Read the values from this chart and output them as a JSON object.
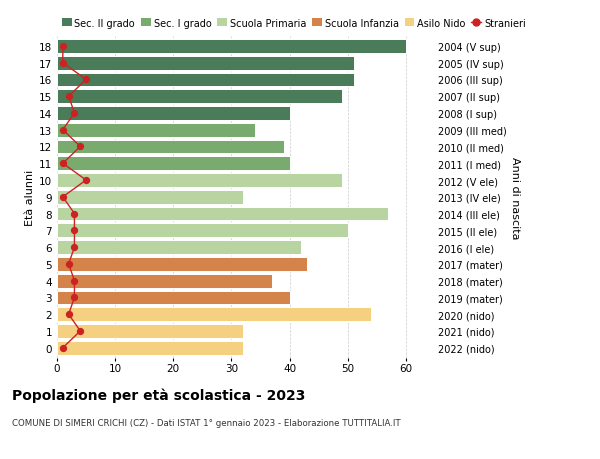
{
  "ages": [
    18,
    17,
    16,
    15,
    14,
    13,
    12,
    11,
    10,
    9,
    8,
    7,
    6,
    5,
    4,
    3,
    2,
    1,
    0
  ],
  "years": [
    "2004 (V sup)",
    "2005 (IV sup)",
    "2006 (III sup)",
    "2007 (II sup)",
    "2008 (I sup)",
    "2009 (III med)",
    "2010 (II med)",
    "2011 (I med)",
    "2012 (V ele)",
    "2013 (IV ele)",
    "2014 (III ele)",
    "2015 (II ele)",
    "2016 (I ele)",
    "2017 (mater)",
    "2018 (mater)",
    "2019 (mater)",
    "2020 (nido)",
    "2021 (nido)",
    "2022 (nido)"
  ],
  "bar_values": [
    60,
    51,
    51,
    49,
    40,
    34,
    39,
    40,
    49,
    32,
    57,
    50,
    42,
    43,
    37,
    40,
    54,
    32,
    32
  ],
  "stranieri": [
    1,
    1,
    5,
    2,
    3,
    1,
    4,
    1,
    5,
    1,
    3,
    3,
    3,
    2,
    3,
    3,
    2,
    4,
    1
  ],
  "bar_colors": [
    "#4a7c59",
    "#4a7c59",
    "#4a7c59",
    "#4a7c59",
    "#4a7c59",
    "#7aab6e",
    "#7aab6e",
    "#7aab6e",
    "#b8d4a0",
    "#b8d4a0",
    "#b8d4a0",
    "#b8d4a0",
    "#b8d4a0",
    "#d4834a",
    "#d4834a",
    "#d4834a",
    "#f5d080",
    "#f5d080",
    "#f5d080"
  ],
  "legend_labels": [
    "Sec. II grado",
    "Sec. I grado",
    "Scuola Primaria",
    "Scuola Infanzia",
    "Asilo Nido",
    "Stranieri"
  ],
  "legend_colors": [
    "#4a7c59",
    "#7aab6e",
    "#b8d4a0",
    "#d4834a",
    "#f5d080",
    "#cc2222"
  ],
  "title_text": "Popolazione per età scolastica - 2023",
  "subtitle": "COMUNE DI SIMERI CRICHI (CZ) - Dati ISTAT 1° gennaio 2023 - Elaborazione TUTTITALIA.IT",
  "ylabel_left": "Età alunni",
  "ylabel_right": "Anni di nascita",
  "xlim": [
    0,
    65
  ],
  "xticks": [
    0,
    10,
    20,
    30,
    40,
    50,
    60
  ],
  "stranieri_color": "#cc2222",
  "bg_color": "#ffffff",
  "bar_height": 0.82
}
